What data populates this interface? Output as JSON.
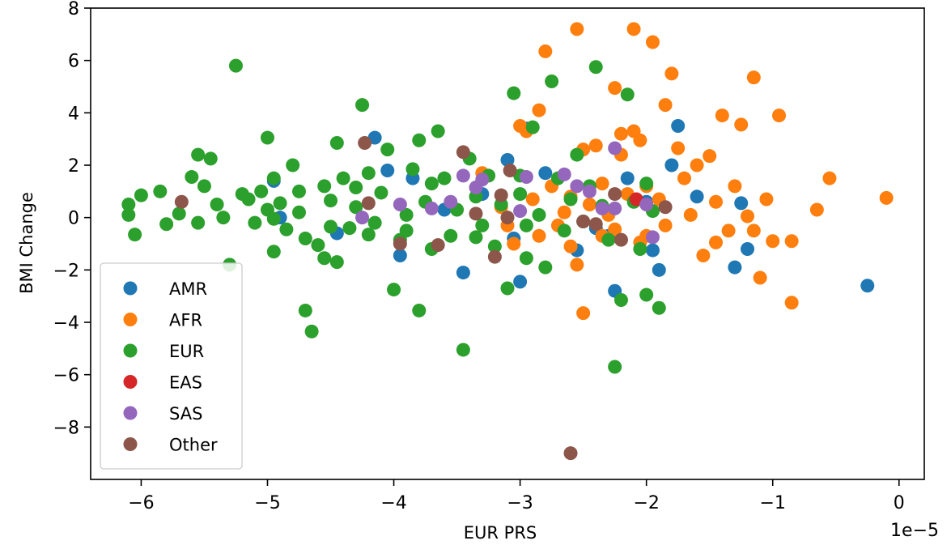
{
  "chart_data": {
    "type": "scatter",
    "title": "",
    "xlabel": "EUR PRS",
    "ylabel": "BMI Change",
    "x_offset_label": "1e−5",
    "xlim": [
      -6.4,
      0.2
    ],
    "ylim": [
      -10,
      8
    ],
    "x_ticks": [
      -6,
      -5,
      -4,
      -3,
      -2,
      -1,
      0
    ],
    "x_tick_labels": [
      "−6",
      "−5",
      "−4",
      "−3",
      "−2",
      "−1",
      "0"
    ],
    "y_ticks": [
      -8,
      -6,
      -4,
      -2,
      0,
      2,
      4,
      6,
      8
    ],
    "y_tick_labels": [
      "−8",
      "−6",
      "−4",
      "−2",
      "0",
      "2",
      "4",
      "6",
      "8"
    ],
    "grid": false,
    "legend_position": "lower-left",
    "series": [
      {
        "name": "AMR",
        "color": "#1f77b4",
        "points": [
          [
            -4.95,
            1.4
          ],
          [
            -4.9,
            0.0
          ],
          [
            -4.45,
            -0.6
          ],
          [
            -4.15,
            3.05
          ],
          [
            -4.05,
            1.8
          ],
          [
            -3.95,
            -1.45
          ],
          [
            -3.85,
            1.5
          ],
          [
            -3.6,
            0.3
          ],
          [
            -3.45,
            -2.1
          ],
          [
            -3.3,
            0.9
          ],
          [
            -3.1,
            2.2
          ],
          [
            -3.05,
            -0.8
          ],
          [
            -3.0,
            -2.45
          ],
          [
            -2.95,
            3.4
          ],
          [
            -2.8,
            1.7
          ],
          [
            -2.55,
            -1.25
          ],
          [
            -2.4,
            -0.4
          ],
          [
            -2.3,
            -0.7
          ],
          [
            -2.25,
            -2.8
          ],
          [
            -2.15,
            1.5
          ],
          [
            -2.0,
            0.6
          ],
          [
            -1.95,
            -1.25
          ],
          [
            -1.9,
            -2.0
          ],
          [
            -1.8,
            2.0
          ],
          [
            -1.75,
            3.5
          ],
          [
            -1.6,
            0.8
          ],
          [
            -1.3,
            -1.9
          ],
          [
            -1.25,
            0.55
          ],
          [
            -1.2,
            -1.2
          ],
          [
            -0.25,
            -2.6
          ]
        ]
      },
      {
        "name": "AFR",
        "color": "#ff7f0e",
        "points": [
          [
            -3.3,
            1.7
          ],
          [
            -3.15,
            0.4
          ],
          [
            -3.1,
            -0.3
          ],
          [
            -3.05,
            -1.0
          ],
          [
            -3.0,
            3.5
          ],
          [
            -2.95,
            3.3
          ],
          [
            -2.9,
            0.7
          ],
          [
            -2.85,
            -0.7
          ],
          [
            -2.85,
            4.1
          ],
          [
            -2.8,
            6.35
          ],
          [
            -2.75,
            1.2
          ],
          [
            -2.7,
            -0.3
          ],
          [
            -2.65,
            0.2
          ],
          [
            -2.6,
            0.8
          ],
          [
            -2.55,
            7.2
          ],
          [
            -2.55,
            -1.8
          ],
          [
            -2.5,
            -3.65
          ],
          [
            -2.5,
            2.6
          ],
          [
            -2.45,
            0.5
          ],
          [
            -2.4,
            2.75
          ],
          [
            -2.35,
            1.3
          ],
          [
            -2.3,
            0.1
          ],
          [
            -2.25,
            -0.45
          ],
          [
            -2.25,
            4.95
          ],
          [
            -2.2,
            3.2
          ],
          [
            -2.2,
            2.4
          ],
          [
            -2.15,
            0.9
          ],
          [
            -2.1,
            7.2
          ],
          [
            -2.1,
            3.3
          ],
          [
            -2.05,
            2.95
          ],
          [
            -2.05,
            -0.95
          ],
          [
            -2.0,
            1.2
          ],
          [
            -1.95,
            6.7
          ],
          [
            -1.9,
            0.7
          ],
          [
            -1.85,
            4.3
          ],
          [
            -1.8,
            5.5
          ],
          [
            -1.75,
            2.65
          ],
          [
            -1.7,
            1.5
          ],
          [
            -1.65,
            0.1
          ],
          [
            -1.6,
            2.0
          ],
          [
            -1.55,
            -1.45
          ],
          [
            -1.5,
            2.35
          ],
          [
            -1.45,
            0.6
          ],
          [
            -1.4,
            3.9
          ],
          [
            -1.35,
            -0.5
          ],
          [
            -1.3,
            1.2
          ],
          [
            -1.25,
            3.55
          ],
          [
            -1.2,
            0.05
          ],
          [
            -1.15,
            5.35
          ],
          [
            -1.1,
            -2.3
          ],
          [
            -1.05,
            0.7
          ],
          [
            -1.0,
            -0.9
          ],
          [
            -0.95,
            3.9
          ],
          [
            -0.85,
            -0.9
          ],
          [
            -0.85,
            -3.25
          ],
          [
            -0.65,
            0.3
          ],
          [
            -0.55,
            1.5
          ],
          [
            -0.1,
            0.75
          ],
          [
            -1.85,
            -0.3
          ],
          [
            -2.6,
            -1.1
          ],
          [
            -2.35,
            -0.7
          ],
          [
            -1.45,
            -0.95
          ],
          [
            -1.15,
            -0.5
          ],
          [
            -2.0,
            -0.7
          ]
        ]
      },
      {
        "name": "EUR",
        "color": "#2ca02c",
        "points": [
          [
            -6.1,
            0.5
          ],
          [
            -6.1,
            0.1
          ],
          [
            -6.05,
            -0.65
          ],
          [
            -6.0,
            0.85
          ],
          [
            -5.85,
            1.0
          ],
          [
            -5.8,
            -0.25
          ],
          [
            -5.7,
            0.15
          ],
          [
            -5.6,
            1.55
          ],
          [
            -5.55,
            2.4
          ],
          [
            -5.5,
            1.2
          ],
          [
            -5.45,
            2.25
          ],
          [
            -5.4,
            0.5
          ],
          [
            -5.35,
            0.0
          ],
          [
            -5.3,
            -1.8
          ],
          [
            -5.25,
            5.8
          ],
          [
            -5.15,
            0.7
          ],
          [
            -5.1,
            -0.2
          ],
          [
            -5.05,
            1.0
          ],
          [
            -5.0,
            0.3
          ],
          [
            -5.0,
            3.05
          ],
          [
            -4.95,
            1.5
          ],
          [
            -4.95,
            -1.3
          ],
          [
            -4.9,
            0.55
          ],
          [
            -4.85,
            -0.45
          ],
          [
            -4.8,
            2.0
          ],
          [
            -4.75,
            0.2
          ],
          [
            -4.7,
            -0.8
          ],
          [
            -4.7,
            -3.55
          ],
          [
            -4.65,
            -4.35
          ],
          [
            -4.6,
            -1.05
          ],
          [
            -4.55,
            1.2
          ],
          [
            -4.5,
            0.65
          ],
          [
            -4.45,
            -1.7
          ],
          [
            -4.45,
            2.85
          ],
          [
            -4.4,
            1.5
          ],
          [
            -4.35,
            -0.4
          ],
          [
            -4.3,
            0.4
          ],
          [
            -4.25,
            4.3
          ],
          [
            -4.2,
            1.7
          ],
          [
            -4.15,
            -0.2
          ],
          [
            -4.1,
            0.95
          ],
          [
            -4.05,
            2.6
          ],
          [
            -4.0,
            -2.75
          ],
          [
            -3.95,
            -0.85
          ],
          [
            -3.9,
            0.1
          ],
          [
            -3.85,
            1.85
          ],
          [
            -3.8,
            2.95
          ],
          [
            -3.8,
            -3.55
          ],
          [
            -3.75,
            0.6
          ],
          [
            -3.7,
            -1.2
          ],
          [
            -3.65,
            3.3
          ],
          [
            -3.6,
            1.5
          ],
          [
            -3.55,
            -0.7
          ],
          [
            -3.5,
            0.3
          ],
          [
            -3.45,
            -5.05
          ],
          [
            -3.4,
            2.25
          ],
          [
            -3.35,
            0.8
          ],
          [
            -3.3,
            -0.3
          ],
          [
            -3.25,
            1.6
          ],
          [
            -3.2,
            -1.1
          ],
          [
            -3.15,
            0.5
          ],
          [
            -3.1,
            -2.7
          ],
          [
            -3.05,
            4.75
          ],
          [
            -3.0,
            0.9
          ],
          [
            -3.0,
            1.6
          ],
          [
            -2.95,
            -0.3
          ],
          [
            -2.9,
            3.45
          ],
          [
            -2.85,
            0.1
          ],
          [
            -2.8,
            -1.9
          ],
          [
            -2.75,
            5.2
          ],
          [
            -2.7,
            1.5
          ],
          [
            -2.65,
            -0.5
          ],
          [
            -2.6,
            0.7
          ],
          [
            -2.55,
            2.4
          ],
          [
            -2.5,
            -0.15
          ],
          [
            -2.45,
            1.2
          ],
          [
            -2.4,
            5.75
          ],
          [
            -2.35,
            0.45
          ],
          [
            -2.3,
            -0.85
          ],
          [
            -2.25,
            -5.7
          ],
          [
            -2.2,
            -3.15
          ],
          [
            -2.15,
            4.7
          ],
          [
            -2.1,
            0.6
          ],
          [
            -2.05,
            -1.2
          ],
          [
            -2.0,
            -2.95
          ],
          [
            -2.0,
            1.3
          ],
          [
            -1.95,
            0.25
          ],
          [
            -1.9,
            -3.45
          ],
          [
            -4.55,
            -1.55
          ],
          [
            -4.2,
            -0.65
          ],
          [
            -3.9,
            -0.5
          ],
          [
            -5.2,
            0.9
          ],
          [
            -4.75,
            1.0
          ],
          [
            -4.3,
            1.15
          ],
          [
            -3.7,
            1.3
          ],
          [
            -3.35,
            -0.75
          ],
          [
            -2.95,
            -1.55
          ],
          [
            -5.55,
            -0.2
          ],
          [
            -4.95,
            -0.05
          ],
          [
            -4.5,
            -0.35
          ]
        ]
      },
      {
        "name": "EAS",
        "color": "#d62728",
        "points": [
          [
            -2.08,
            0.7
          ]
        ]
      },
      {
        "name": "SAS",
        "color": "#9467bd",
        "points": [
          [
            -4.25,
            0.0
          ],
          [
            -3.95,
            0.5
          ],
          [
            -3.7,
            0.35
          ],
          [
            -3.55,
            0.6
          ],
          [
            -3.45,
            1.6
          ],
          [
            -3.35,
            1.15
          ],
          [
            -3.3,
            1.45
          ],
          [
            -3.0,
            0.25
          ],
          [
            -2.95,
            1.55
          ],
          [
            -2.65,
            1.65
          ],
          [
            -2.55,
            1.2
          ],
          [
            -2.45,
            1.0
          ],
          [
            -2.35,
            0.35
          ],
          [
            -2.25,
            0.35
          ],
          [
            -2.25,
            2.65
          ],
          [
            -2.0,
            0.5
          ],
          [
            -1.95,
            -0.75
          ]
        ]
      },
      {
        "name": "Other",
        "color": "#8c564b",
        "points": [
          [
            -5.68,
            0.6
          ],
          [
            -4.23,
            2.85
          ],
          [
            -4.2,
            0.55
          ],
          [
            -3.95,
            -1.0
          ],
          [
            -3.65,
            -1.05
          ],
          [
            -3.35,
            0.15
          ],
          [
            -3.45,
            2.5
          ],
          [
            -3.2,
            -1.5
          ],
          [
            -3.15,
            0.85
          ],
          [
            -3.1,
            0.0
          ],
          [
            -3.08,
            1.8
          ],
          [
            -2.6,
            -9.0
          ],
          [
            -2.5,
            -0.15
          ],
          [
            -2.4,
            -0.25
          ],
          [
            -2.2,
            -0.85
          ],
          [
            -2.25,
            0.9
          ],
          [
            -1.85,
            0.4
          ]
        ]
      }
    ]
  }
}
